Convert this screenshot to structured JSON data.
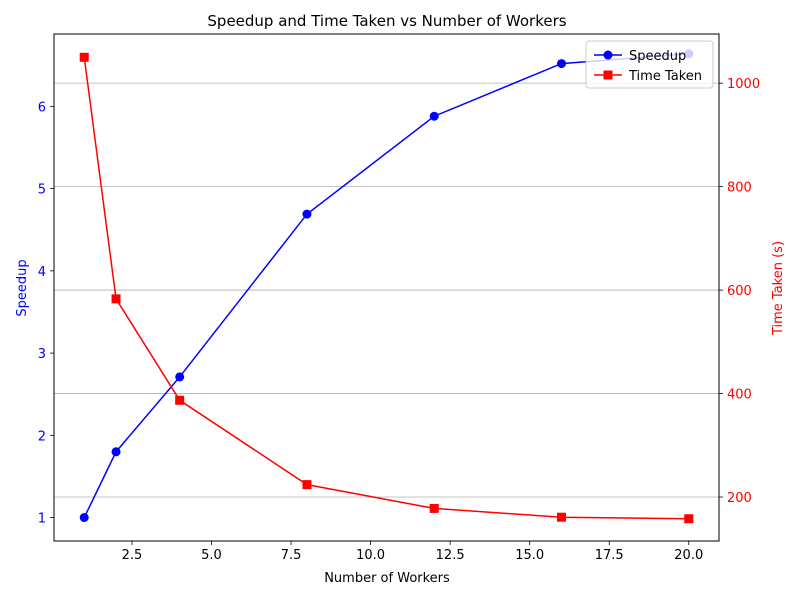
{
  "chart_data": {
    "type": "line",
    "title": "Speedup and Time Taken vs Number of Workers",
    "xlabel": "Number of Workers",
    "ylabel_left": "Speedup",
    "ylabel_right": "Time Taken (s)",
    "x": [
      1,
      2,
      4,
      8,
      12,
      16,
      20
    ],
    "xlim": [
      0.05,
      20.95
    ],
    "xticks": [
      2.5,
      5.0,
      7.5,
      10.0,
      12.5,
      15.0,
      17.5,
      20.0
    ],
    "xtick_labels": [
      "2.5",
      "5.0",
      "7.5",
      "10.0",
      "12.5",
      "15.0",
      "17.5",
      "20.0"
    ],
    "ylim_left": [
      0.715,
      6.88
    ],
    "yticks_left": [
      1,
      2,
      3,
      4,
      5,
      6
    ],
    "ytick_labels_left": [
      "1",
      "2",
      "3",
      "4",
      "5",
      "6"
    ],
    "ylim_right": [
      115,
      1095
    ],
    "yticks_right": [
      200,
      400,
      600,
      800,
      1000
    ],
    "ytick_labels_right": [
      "200",
      "400",
      "600",
      "800",
      "1000"
    ],
    "grid": "horizontal lines at right-axis ticks",
    "legend_position": "top-right",
    "series": [
      {
        "name": "Speedup",
        "axis": "left",
        "color": "#0000ff",
        "marker": "circle",
        "values": [
          1.0,
          1.8,
          2.71,
          4.69,
          5.88,
          6.52,
          6.64
        ]
      },
      {
        "name": "Time Taken",
        "axis": "right",
        "color": "#ff0000",
        "marker": "square",
        "values": [
          1050,
          583,
          387,
          224,
          178,
          161,
          158
        ]
      }
    ]
  }
}
